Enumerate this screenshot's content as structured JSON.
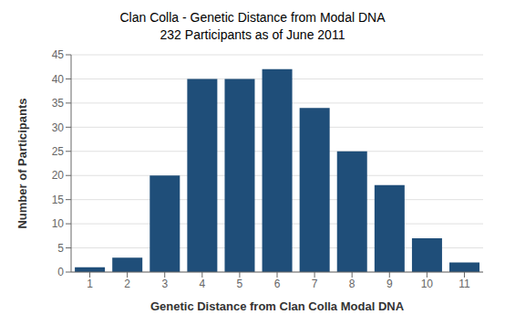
{
  "chart_data": {
    "type": "bar",
    "title": "Clan Colla - Genetic Distance from Modal DNA",
    "subtitle": "232 Participants as of June 2011",
    "xlabel": "Genetic Distance from Clan Colla Modal DNA",
    "ylabel": "Number of Participants",
    "categories": [
      1,
      2,
      3,
      4,
      5,
      6,
      7,
      8,
      9,
      10,
      11
    ],
    "values": [
      1,
      3,
      20,
      40,
      40,
      42,
      34,
      25,
      18,
      7,
      2
    ],
    "color": "#1F4E79",
    "ylim": [
      0,
      45
    ],
    "yticks": [
      0,
      5,
      10,
      15,
      20,
      25,
      30,
      35,
      40,
      45
    ],
    "grid": true
  }
}
